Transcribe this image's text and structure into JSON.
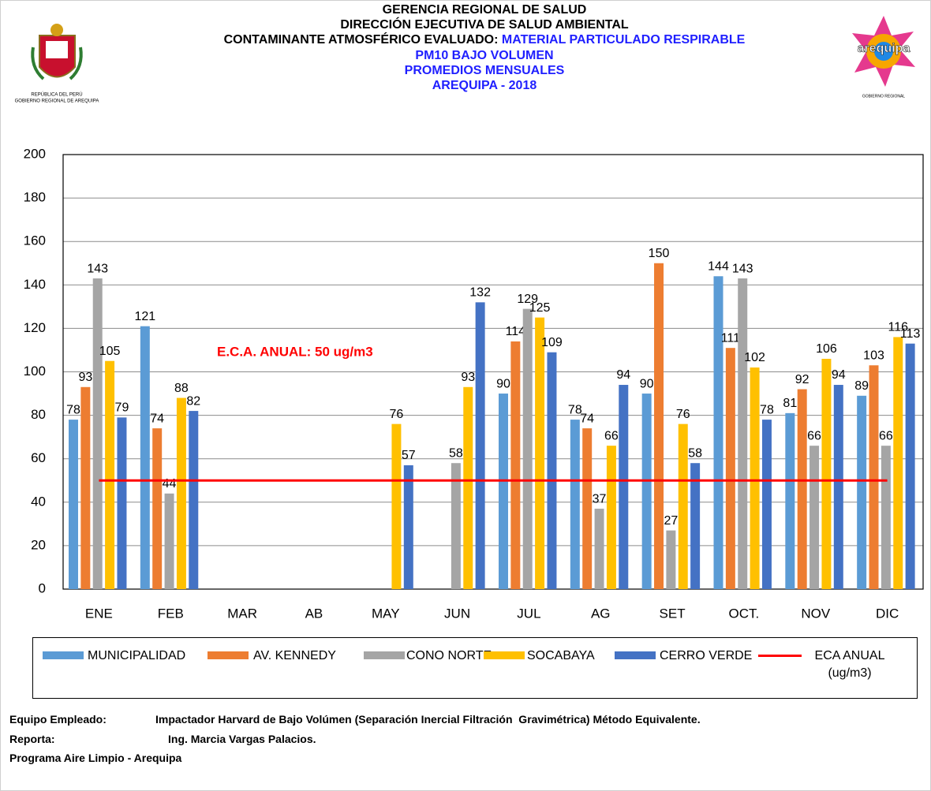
{
  "logos": {
    "left": [
      "REPÚBLICA DEL PERÚ",
      "GOBIERNO REGIONAL DE AREQUIPA"
    ],
    "right": [
      "arequipa",
      "GOBIERNO REGIONAL"
    ]
  },
  "chart_data": {
    "type": "bar",
    "title": [
      "GERENCIA REGIONAL DE SALUD",
      "DIRECCIÓN EJECUTIVA DE SALUD AMBIENTAL",
      "CONTAMINANTE ATMOSFÉRICO EVALUADO:"
    ],
    "subtitle": [
      "MATERIAL PARTICULADO RESPIRABLE",
      "PM10 BAJO VOLUMEN",
      "PROMEDIOS MENSUALES",
      "AREQUIPA - 2018"
    ],
    "annotation": "E.C.A. ANUAL: 50 ug/m3",
    "categories": [
      "ENE",
      "FEB",
      "MAR",
      "AB",
      "MAY",
      "JUN",
      "JUL",
      "AG",
      "SET",
      "OCT.",
      "NOV",
      "DIC"
    ],
    "series": [
      {
        "name": "MUNICIPALIDAD",
        "color": "#5b9bd5",
        "values": [
          78,
          121,
          null,
          null,
          null,
          null,
          90,
          78,
          90,
          144,
          81,
          89
        ]
      },
      {
        "name": "AV. KENNEDY",
        "color": "#ed7d31",
        "values": [
          93,
          74,
          null,
          null,
          null,
          null,
          114,
          74,
          150,
          111,
          92,
          103
        ]
      },
      {
        "name": "CONO NORTE",
        "color": "#a5a5a5",
        "values": [
          143,
          44,
          null,
          null,
          null,
          58,
          129,
          37,
          27,
          143,
          66,
          66
        ]
      },
      {
        "name": "SOCABAYA",
        "color": "#ffc000",
        "values": [
          105,
          88,
          null,
          null,
          76,
          93,
          125,
          66,
          76,
          102,
          106,
          116
        ]
      },
      {
        "name": "CERRO VERDE",
        "color": "#4472c4",
        "values": [
          79,
          82,
          null,
          null,
          57,
          132,
          109,
          94,
          58,
          78,
          94,
          113
        ]
      },
      {
        "name": "ECA ANUAL (ug/m3)",
        "color": "#ff0000",
        "type": "line",
        "values": [
          50,
          50,
          50,
          50,
          50,
          50,
          50,
          50,
          50,
          50,
          50,
          50
        ]
      }
    ],
    "ylim": [
      0,
      200
    ],
    "yticks": [
      0,
      20,
      40,
      60,
      80,
      100,
      120,
      140,
      160,
      180,
      200
    ],
    "grid": true,
    "legend": "bottom"
  },
  "notes": [
    [
      "Equipo Empleado:",
      "Impactador Harvard de Bajo Volúmen (Separación Inercial Filtración  Gravimétrica) Método Equivalente."
    ],
    [
      "Reporta:",
      "Ing. Marcia Vargas Palacios."
    ],
    [
      "Programa Aire Limpio - Arequipa"
    ]
  ]
}
